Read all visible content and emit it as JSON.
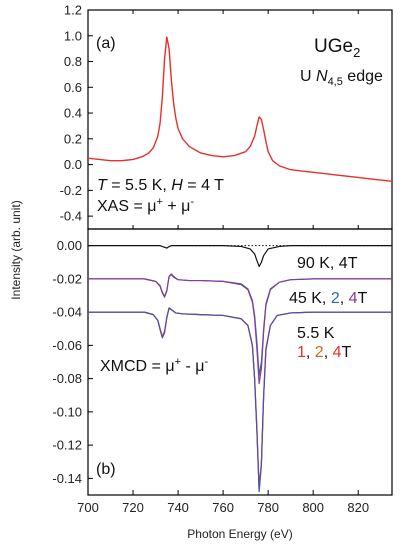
{
  "chart_data": [
    {
      "type": "line",
      "panel_label": "(a)",
      "title_main": "UGe",
      "title_sub": "2",
      "edge_prefix": "U ",
      "edge_italic": "N",
      "edge_sub": "4,5",
      "edge_suffix": " edge",
      "cond_T": "T",
      "cond_eq1": " = 5.5 K, ",
      "cond_H": "H",
      "cond_eq2": " = 4 T",
      "formula_left": "XAS = μ",
      "formula_sup1": "+",
      "formula_mid": " + μ",
      "formula_sup2": "-",
      "ylim": [
        -0.5,
        1.2
      ],
      "xlim": [
        700,
        835
      ],
      "yticks": [
        "1.2",
        "1.0",
        "0.8",
        "0.6",
        "0.4",
        "0.2",
        "0.0",
        "-0.2",
        "-0.4"
      ],
      "ytick_values": [
        1.2,
        1.0,
        0.8,
        0.6,
        0.4,
        0.2,
        0.0,
        -0.2,
        -0.4
      ],
      "series": [
        {
          "color": "#e8302a",
          "x": [
            700,
            705,
            710,
            715,
            720,
            724,
            727,
            729,
            731,
            732,
            733,
            734,
            735,
            736,
            737,
            738,
            739,
            740,
            742,
            745,
            750,
            755,
            760,
            765,
            770,
            772,
            774,
            775,
            776,
            777,
            778,
            779,
            780,
            782,
            785,
            790,
            795,
            800,
            805,
            810,
            815,
            820,
            825,
            830,
            835
          ],
          "y": [
            0.05,
            0.04,
            0.03,
            0.03,
            0.04,
            0.06,
            0.09,
            0.13,
            0.22,
            0.32,
            0.52,
            0.82,
            0.99,
            0.9,
            0.66,
            0.48,
            0.36,
            0.28,
            0.2,
            0.14,
            0.09,
            0.07,
            0.06,
            0.07,
            0.1,
            0.14,
            0.22,
            0.3,
            0.37,
            0.35,
            0.27,
            0.18,
            0.1,
            0.03,
            -0.01,
            -0.04,
            -0.05,
            -0.06,
            -0.07,
            -0.08,
            -0.09,
            -0.1,
            -0.11,
            -0.12,
            -0.13
          ]
        }
      ]
    },
    {
      "type": "line",
      "panel_label": "(b)",
      "ylabel": "Intensity (arb. unit)",
      "xlabel": "Photon Energy (eV)",
      "ylim": [
        -0.15,
        0.01
      ],
      "xlim": [
        700,
        835
      ],
      "yticks": [
        "0.00",
        "-0.02",
        "-0.04",
        "-0.06",
        "-0.08",
        "-0.10",
        "-0.12",
        "-0.14"
      ],
      "ytick_values": [
        0.0,
        -0.02,
        -0.04,
        -0.06,
        -0.08,
        -0.1,
        -0.12,
        -0.14
      ],
      "xticks": [
        "700",
        "720",
        "740",
        "760",
        "780",
        "800",
        "820"
      ],
      "xtick_values": [
        700,
        720,
        740,
        760,
        780,
        800,
        820
      ],
      "formula_left": "XMCD = μ",
      "formula_sup1": "+",
      "formula_mid": " - μ",
      "formula_sup2": "-",
      "label_90": "90 K, 4T",
      "label_45_prefix": "45 K, ",
      "label_45_2": "2",
      "label_45_sep": ", ",
      "label_45_4": "4",
      "label_45_T": "T",
      "label_55": "5.5 K",
      "label_55_1": "1",
      "label_55_2": "2",
      "label_55_4": "4",
      "label_55_T": "T",
      "colors": {
        "one": "#e8302a",
        "two_orange": "#c96a12",
        "two_blue": "#2f66b3",
        "four": "#8a3c8f",
        "black": "#111111"
      },
      "baseline": {
        "y": 0.0,
        "style": "dotted",
        "color": "#111111"
      },
      "series": [
        {
          "name": "90 K, 4T",
          "color": "#111111",
          "x": [
            700,
            725,
            732,
            734,
            735,
            736,
            737,
            740,
            750,
            760,
            768,
            772,
            774,
            775,
            776,
            777,
            778,
            780,
            785,
            790,
            800,
            835
          ],
          "y": [
            0.0,
            0.0,
            0.0,
            -0.001,
            -0.0015,
            -0.0005,
            0.0,
            0.0,
            0.0,
            0.0,
            -0.0005,
            -0.002,
            -0.005,
            -0.009,
            -0.0125,
            -0.01,
            -0.006,
            -0.002,
            -0.0005,
            0.0,
            0.0,
            0.0
          ]
        },
        {
          "name": "45 K, 2T",
          "color": "#2f66b3",
          "x": [
            700,
            725,
            730,
            732,
            733,
            734,
            735,
            736,
            737,
            738,
            740,
            745,
            750,
            760,
            768,
            771,
            773,
            774,
            775,
            776,
            777,
            778,
            779,
            781,
            785,
            790,
            800,
            835
          ],
          "y": [
            -0.02,
            -0.02,
            -0.0215,
            -0.024,
            -0.028,
            -0.0305,
            -0.027,
            -0.0185,
            -0.0175,
            -0.019,
            -0.0205,
            -0.021,
            -0.021,
            -0.0215,
            -0.023,
            -0.026,
            -0.033,
            -0.042,
            -0.058,
            -0.078,
            -0.07,
            -0.05,
            -0.035,
            -0.026,
            -0.022,
            -0.0205,
            -0.02,
            -0.02
          ]
        },
        {
          "name": "45 K, 4T",
          "color": "#8a3c8f",
          "x": [
            700,
            725,
            730,
            732,
            733,
            734,
            735,
            736,
            737,
            738,
            740,
            745,
            750,
            760,
            768,
            771,
            773,
            774,
            775,
            776,
            777,
            778,
            779,
            781,
            785,
            790,
            800,
            835
          ],
          "y": [
            -0.02,
            -0.02,
            -0.0215,
            -0.0245,
            -0.0285,
            -0.031,
            -0.0275,
            -0.0185,
            -0.017,
            -0.0185,
            -0.0205,
            -0.021,
            -0.021,
            -0.0215,
            -0.0235,
            -0.0265,
            -0.034,
            -0.044,
            -0.062,
            -0.083,
            -0.074,
            -0.052,
            -0.036,
            -0.0265,
            -0.022,
            -0.0205,
            -0.02,
            -0.02
          ]
        },
        {
          "name": "5.5 K, 1T",
          "color": "#e8302a",
          "x": [
            700,
            725,
            729,
            731,
            732,
            733,
            734,
            735,
            736,
            737,
            739,
            742,
            750,
            760,
            768,
            771,
            773,
            774,
            775,
            776,
            777,
            778,
            779,
            781,
            784,
            790,
            800,
            835
          ],
          "y": [
            -0.04,
            -0.04,
            -0.0415,
            -0.045,
            -0.05,
            -0.0545,
            -0.0515,
            -0.043,
            -0.0375,
            -0.0385,
            -0.0405,
            -0.041,
            -0.0415,
            -0.042,
            -0.044,
            -0.048,
            -0.06,
            -0.08,
            -0.11,
            -0.146,
            -0.13,
            -0.09,
            -0.062,
            -0.048,
            -0.042,
            -0.0405,
            -0.04,
            -0.04
          ]
        },
        {
          "name": "5.5 K, 2T",
          "color": "#c96a12",
          "x": [
            700,
            725,
            729,
            731,
            732,
            733,
            734,
            735,
            736,
            737,
            739,
            742,
            750,
            760,
            768,
            771,
            773,
            774,
            775,
            776,
            777,
            778,
            779,
            781,
            784,
            790,
            800,
            835
          ],
          "y": [
            -0.04,
            -0.04,
            -0.0415,
            -0.045,
            -0.05,
            -0.055,
            -0.052,
            -0.043,
            -0.0375,
            -0.0385,
            -0.0405,
            -0.041,
            -0.0415,
            -0.042,
            -0.044,
            -0.048,
            -0.06,
            -0.08,
            -0.11,
            -0.147,
            -0.131,
            -0.09,
            -0.062,
            -0.048,
            -0.042,
            -0.0405,
            -0.04,
            -0.04
          ]
        },
        {
          "name": "5.5 K, 4T",
          "color": "#4a4fb0",
          "x": [
            700,
            725,
            729,
            731,
            732,
            733,
            734,
            735,
            736,
            737,
            739,
            742,
            750,
            760,
            768,
            771,
            773,
            774,
            775,
            776,
            777,
            778,
            779,
            781,
            784,
            790,
            800,
            835
          ],
          "y": [
            -0.04,
            -0.04,
            -0.0415,
            -0.045,
            -0.0505,
            -0.0555,
            -0.0525,
            -0.0435,
            -0.0375,
            -0.0385,
            -0.0405,
            -0.041,
            -0.0415,
            -0.042,
            -0.044,
            -0.048,
            -0.06,
            -0.081,
            -0.112,
            -0.148,
            -0.132,
            -0.091,
            -0.063,
            -0.048,
            -0.042,
            -0.0405,
            -0.04,
            -0.04
          ]
        }
      ]
    }
  ]
}
